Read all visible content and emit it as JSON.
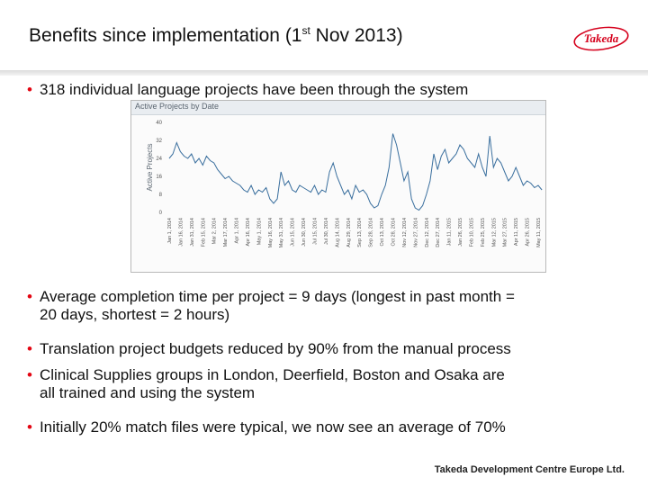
{
  "slide": {
    "title_main": "Benefits since implementation (1",
    "title_sup": "st",
    "title_end": " Nov 2013)",
    "logo_text": "Takeda",
    "bullets": [
      {
        "lines": [
          "318 individual language projects have been through the system"
        ]
      },
      {
        "lines": [
          "Average completion time per project = 9 days (longest in past month =",
          "20 days, shortest = 2 hours)"
        ]
      },
      {
        "lines": [
          "Translation project budgets reduced by 90% from the manual process"
        ]
      },
      {
        "lines": [
          "Clinical Supplies groups in London, Deerfield, Boston and Osaka are",
          "all trained and using the system"
        ]
      },
      {
        "lines": [
          "Initially 20% match files were typical, we now see an average of 70%"
        ]
      }
    ],
    "footer": "Takeda Development Centre Europe Ltd.",
    "colors": {
      "bullet": "#e30613",
      "line": "#3a6f9e",
      "logo": "#d5001c"
    }
  },
  "chart_data": {
    "type": "line",
    "title": "Active Projects by Date",
    "ylabel": "Active Projects",
    "ylim": [
      0,
      40
    ],
    "yticks": [
      0,
      8,
      16,
      24,
      32,
      40
    ],
    "xticks": [
      "Jan 1, 2014",
      "Jan 16, 2014",
      "Jan 31, 2014",
      "Feb 15, 2014",
      "Mar 2, 2014",
      "Mar 17, 2014",
      "Apr 1, 2014",
      "Apr 16, 2014",
      "May 1, 2014",
      "May 16, 2014",
      "May 31, 2014",
      "Jun 15, 2014",
      "Jun 30, 2014",
      "Jul 15, 2014",
      "Jul 30, 2014",
      "Aug 14, 2014",
      "Aug 29, 2014",
      "Sep 13, 2014",
      "Sep 28, 2014",
      "Oct 13, 2014",
      "Oct 28, 2014",
      "Nov 12, 2014",
      "Nov 27, 2014",
      "Dec 12, 2014",
      "Dec 27, 2014",
      "Jan 11, 2015",
      "Jan 26, 2015",
      "Feb 10, 2015",
      "Feb 25, 2015",
      "Mar 12, 2015",
      "Mar 27, 2015",
      "Apr 11, 2015",
      "Apr 26, 2015",
      "May 11, 2015"
    ],
    "grid": false,
    "series": [
      {
        "x": [
          "Jan 1, 2014",
          "Jan 6, 2014",
          "Jan 11, 2014",
          "Jan 16, 2014",
          "Jan 21, 2014",
          "Jan 26, 2014",
          "Jan 31, 2014",
          "Feb 5, 2014",
          "Feb 10, 2014",
          "Feb 15, 2014",
          "Feb 20, 2014",
          "Feb 25, 2014",
          "Mar 2, 2014",
          "Mar 7, 2014",
          "Mar 12, 2014",
          "Mar 17, 2014",
          "Mar 22, 2014",
          "Mar 27, 2014",
          "Apr 1, 2014",
          "Apr 6, 2014",
          "Apr 11, 2014",
          "Apr 16, 2014",
          "Apr 21, 2014",
          "Apr 26, 2014",
          "May 1, 2014",
          "May 6, 2014",
          "May 11, 2014",
          "May 16, 2014",
          "May 21, 2014",
          "May 26, 2014",
          "May 31, 2014",
          "Jun 5, 2014",
          "Jun 10, 2014",
          "Jun 15, 2014",
          "Jun 20, 2014",
          "Jun 25, 2014",
          "Jun 30, 2014",
          "Jul 5, 2014",
          "Jul 10, 2014",
          "Jul 15, 2014",
          "Jul 20, 2014",
          "Jul 25, 2014",
          "Jul 30, 2014",
          "Aug 4, 2014",
          "Aug 9, 2014",
          "Aug 14, 2014",
          "Aug 19, 2014",
          "Aug 24, 2014",
          "Aug 29, 2014",
          "Sep 3, 2014",
          "Sep 8, 2014",
          "Sep 13, 2014",
          "Sep 18, 2014",
          "Sep 23, 2014",
          "Sep 28, 2014",
          "Oct 3, 2014",
          "Oct 8, 2014",
          "Oct 13, 2014",
          "Oct 18, 2014",
          "Oct 23, 2014",
          "Oct 28, 2014",
          "Nov 2, 2014",
          "Nov 7, 2014",
          "Nov 12, 2014",
          "Nov 17, 2014",
          "Nov 22, 2014",
          "Nov 27, 2014",
          "Dec 2, 2014",
          "Dec 7, 2014",
          "Dec 12, 2014",
          "Dec 17, 2014",
          "Dec 22, 2014",
          "Dec 27, 2014",
          "Jan 1, 2015",
          "Jan 6, 2015",
          "Jan 11, 2015",
          "Jan 16, 2015",
          "Jan 21, 2015",
          "Jan 26, 2015",
          "Jan 31, 2015",
          "Feb 5, 2015",
          "Feb 10, 2015",
          "Feb 15, 2015",
          "Feb 20, 2015",
          "Feb 25, 2015",
          "Mar 2, 2015",
          "Mar 7, 2015",
          "Mar 12, 2015",
          "Mar 17, 2015",
          "Mar 22, 2015",
          "Mar 27, 2015",
          "Apr 1, 2015",
          "Apr 6, 2015",
          "Apr 11, 2015",
          "Apr 16, 2015",
          "Apr 21, 2015",
          "Apr 26, 2015",
          "May 1, 2015",
          "May 6, 2015",
          "May 11, 2015",
          "May 16, 2015"
        ],
        "values": [
          24,
          26,
          31,
          27,
          25,
          24,
          26,
          22,
          24,
          21,
          25,
          23,
          22,
          19,
          17,
          15,
          16,
          14,
          13,
          12,
          10,
          9,
          12,
          8,
          10,
          9,
          11,
          6,
          4,
          6,
          18,
          12,
          14,
          10,
          9,
          12,
          11,
          10,
          9,
          12,
          8,
          10,
          9,
          18,
          22,
          16,
          12,
          8,
          10,
          6,
          12,
          9,
          10,
          8,
          4,
          2,
          3,
          8,
          12,
          20,
          35,
          30,
          22,
          14,
          18,
          6,
          2,
          1,
          3,
          8,
          14,
          26,
          19,
          25,
          28,
          22,
          24,
          26,
          30,
          28,
          24,
          22,
          20,
          26,
          20,
          16,
          34,
          20,
          24,
          22,
          18,
          14,
          16,
          20,
          16,
          12,
          14,
          13,
          11,
          12,
          10
        ]
      }
    ]
  }
}
